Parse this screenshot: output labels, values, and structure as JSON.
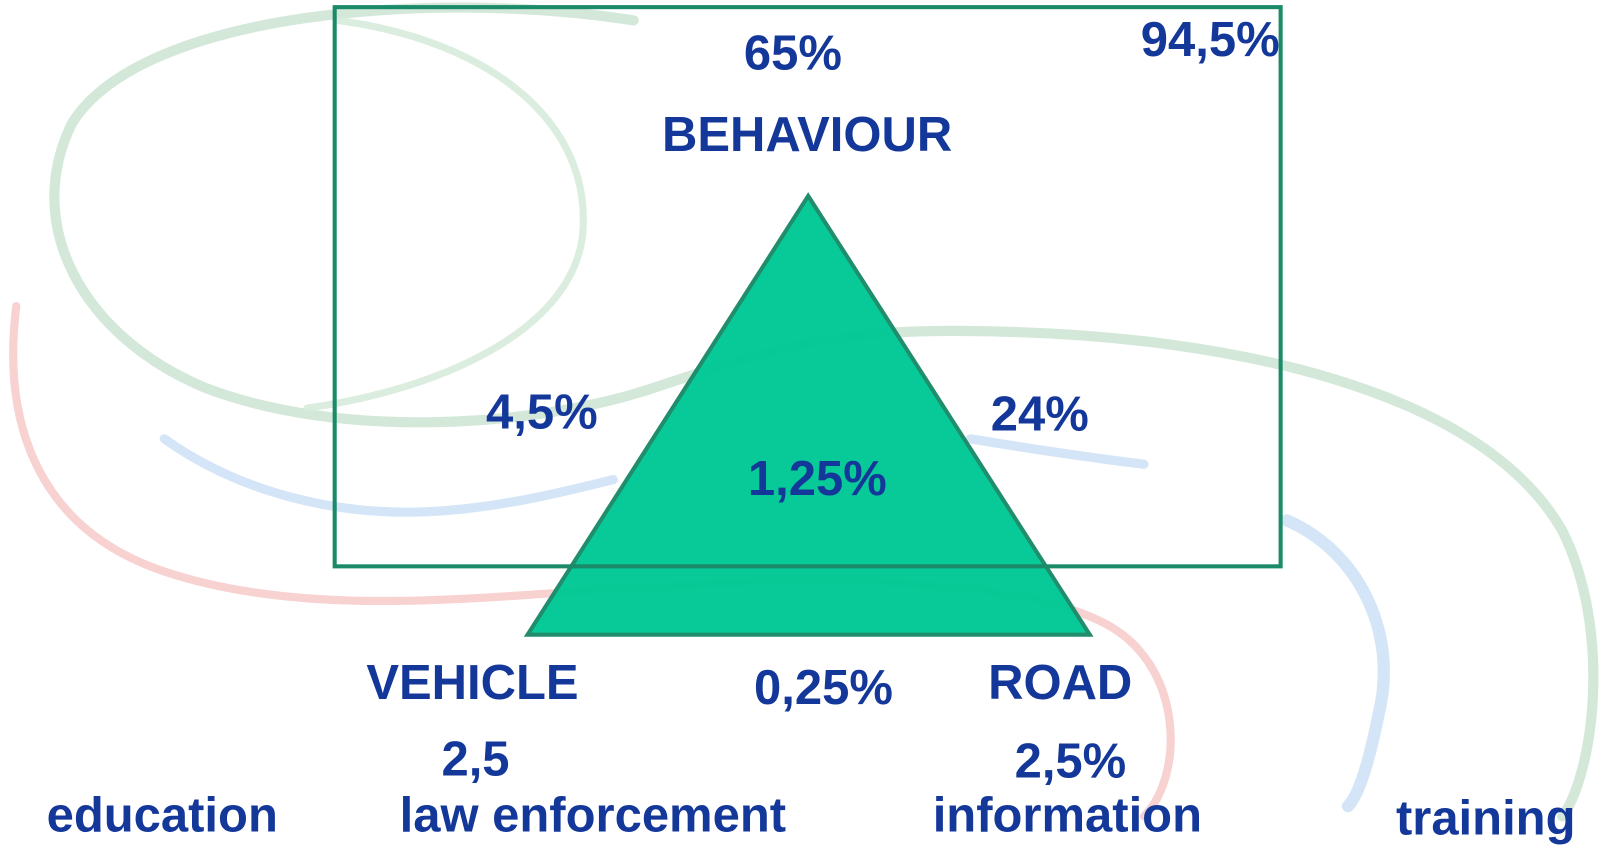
{
  "factors": [
    {
      "label": "BEHAVIOUR",
      "share": "65%"
    },
    {
      "label": "VEHICLE",
      "share": "2,5"
    },
    {
      "label": "ROAD",
      "share": "2,5%"
    }
  ],
  "overlaps": {
    "behaviour_vehicle": "4,5%",
    "behaviour_road": "24%",
    "vehicle_road": "0,25%",
    "all_three": "1,25%"
  },
  "total": "94,5%",
  "measures": [
    "education",
    "law enforcement",
    "information",
    "training"
  ]
}
